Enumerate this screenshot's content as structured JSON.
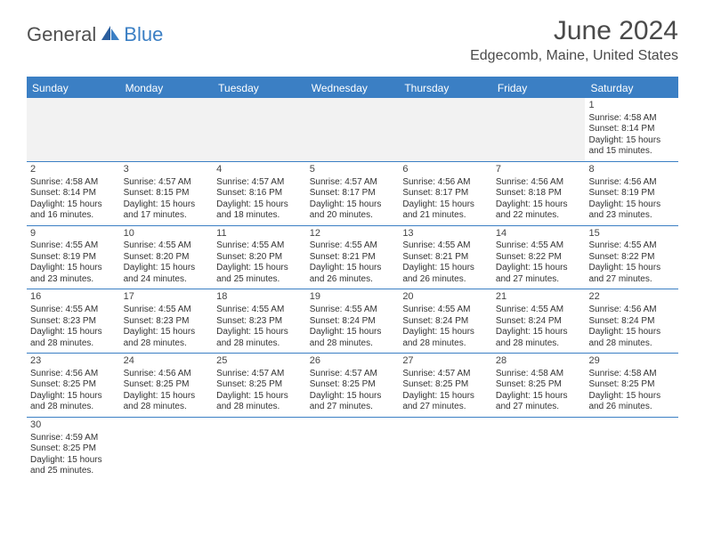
{
  "brand": {
    "part1": "General",
    "part2": "Blue"
  },
  "title": "June 2024",
  "location": "Edgecomb, Maine, United States",
  "colors": {
    "accent": "#3b7fc4",
    "text_dark": "#4a4a4a",
    "cell_text": "#333333",
    "empty_bg": "#f2f2f2",
    "white": "#ffffff"
  },
  "day_headers": [
    "Sunday",
    "Monday",
    "Tuesday",
    "Wednesday",
    "Thursday",
    "Friday",
    "Saturday"
  ],
  "weeks": [
    [
      {
        "empty": true
      },
      {
        "empty": true
      },
      {
        "empty": true
      },
      {
        "empty": true
      },
      {
        "empty": true
      },
      {
        "empty": true
      },
      {
        "num": "1",
        "sunrise": "Sunrise: 4:58 AM",
        "sunset": "Sunset: 8:14 PM",
        "day1": "Daylight: 15 hours",
        "day2": "and 15 minutes."
      }
    ],
    [
      {
        "num": "2",
        "sunrise": "Sunrise: 4:58 AM",
        "sunset": "Sunset: 8:14 PM",
        "day1": "Daylight: 15 hours",
        "day2": "and 16 minutes."
      },
      {
        "num": "3",
        "sunrise": "Sunrise: 4:57 AM",
        "sunset": "Sunset: 8:15 PM",
        "day1": "Daylight: 15 hours",
        "day2": "and 17 minutes."
      },
      {
        "num": "4",
        "sunrise": "Sunrise: 4:57 AM",
        "sunset": "Sunset: 8:16 PM",
        "day1": "Daylight: 15 hours",
        "day2": "and 18 minutes."
      },
      {
        "num": "5",
        "sunrise": "Sunrise: 4:57 AM",
        "sunset": "Sunset: 8:17 PM",
        "day1": "Daylight: 15 hours",
        "day2": "and 20 minutes."
      },
      {
        "num": "6",
        "sunrise": "Sunrise: 4:56 AM",
        "sunset": "Sunset: 8:17 PM",
        "day1": "Daylight: 15 hours",
        "day2": "and 21 minutes."
      },
      {
        "num": "7",
        "sunrise": "Sunrise: 4:56 AM",
        "sunset": "Sunset: 8:18 PM",
        "day1": "Daylight: 15 hours",
        "day2": "and 22 minutes."
      },
      {
        "num": "8",
        "sunrise": "Sunrise: 4:56 AM",
        "sunset": "Sunset: 8:19 PM",
        "day1": "Daylight: 15 hours",
        "day2": "and 23 minutes."
      }
    ],
    [
      {
        "num": "9",
        "sunrise": "Sunrise: 4:55 AM",
        "sunset": "Sunset: 8:19 PM",
        "day1": "Daylight: 15 hours",
        "day2": "and 23 minutes."
      },
      {
        "num": "10",
        "sunrise": "Sunrise: 4:55 AM",
        "sunset": "Sunset: 8:20 PM",
        "day1": "Daylight: 15 hours",
        "day2": "and 24 minutes."
      },
      {
        "num": "11",
        "sunrise": "Sunrise: 4:55 AM",
        "sunset": "Sunset: 8:20 PM",
        "day1": "Daylight: 15 hours",
        "day2": "and 25 minutes."
      },
      {
        "num": "12",
        "sunrise": "Sunrise: 4:55 AM",
        "sunset": "Sunset: 8:21 PM",
        "day1": "Daylight: 15 hours",
        "day2": "and 26 minutes."
      },
      {
        "num": "13",
        "sunrise": "Sunrise: 4:55 AM",
        "sunset": "Sunset: 8:21 PM",
        "day1": "Daylight: 15 hours",
        "day2": "and 26 minutes."
      },
      {
        "num": "14",
        "sunrise": "Sunrise: 4:55 AM",
        "sunset": "Sunset: 8:22 PM",
        "day1": "Daylight: 15 hours",
        "day2": "and 27 minutes."
      },
      {
        "num": "15",
        "sunrise": "Sunrise: 4:55 AM",
        "sunset": "Sunset: 8:22 PM",
        "day1": "Daylight: 15 hours",
        "day2": "and 27 minutes."
      }
    ],
    [
      {
        "num": "16",
        "sunrise": "Sunrise: 4:55 AM",
        "sunset": "Sunset: 8:23 PM",
        "day1": "Daylight: 15 hours",
        "day2": "and 28 minutes."
      },
      {
        "num": "17",
        "sunrise": "Sunrise: 4:55 AM",
        "sunset": "Sunset: 8:23 PM",
        "day1": "Daylight: 15 hours",
        "day2": "and 28 minutes."
      },
      {
        "num": "18",
        "sunrise": "Sunrise: 4:55 AM",
        "sunset": "Sunset: 8:23 PM",
        "day1": "Daylight: 15 hours",
        "day2": "and 28 minutes."
      },
      {
        "num": "19",
        "sunrise": "Sunrise: 4:55 AM",
        "sunset": "Sunset: 8:24 PM",
        "day1": "Daylight: 15 hours",
        "day2": "and 28 minutes."
      },
      {
        "num": "20",
        "sunrise": "Sunrise: 4:55 AM",
        "sunset": "Sunset: 8:24 PM",
        "day1": "Daylight: 15 hours",
        "day2": "and 28 minutes."
      },
      {
        "num": "21",
        "sunrise": "Sunrise: 4:55 AM",
        "sunset": "Sunset: 8:24 PM",
        "day1": "Daylight: 15 hours",
        "day2": "and 28 minutes."
      },
      {
        "num": "22",
        "sunrise": "Sunrise: 4:56 AM",
        "sunset": "Sunset: 8:24 PM",
        "day1": "Daylight: 15 hours",
        "day2": "and 28 minutes."
      }
    ],
    [
      {
        "num": "23",
        "sunrise": "Sunrise: 4:56 AM",
        "sunset": "Sunset: 8:25 PM",
        "day1": "Daylight: 15 hours",
        "day2": "and 28 minutes."
      },
      {
        "num": "24",
        "sunrise": "Sunrise: 4:56 AM",
        "sunset": "Sunset: 8:25 PM",
        "day1": "Daylight: 15 hours",
        "day2": "and 28 minutes."
      },
      {
        "num": "25",
        "sunrise": "Sunrise: 4:57 AM",
        "sunset": "Sunset: 8:25 PM",
        "day1": "Daylight: 15 hours",
        "day2": "and 28 minutes."
      },
      {
        "num": "26",
        "sunrise": "Sunrise: 4:57 AM",
        "sunset": "Sunset: 8:25 PM",
        "day1": "Daylight: 15 hours",
        "day2": "and 27 minutes."
      },
      {
        "num": "27",
        "sunrise": "Sunrise: 4:57 AM",
        "sunset": "Sunset: 8:25 PM",
        "day1": "Daylight: 15 hours",
        "day2": "and 27 minutes."
      },
      {
        "num": "28",
        "sunrise": "Sunrise: 4:58 AM",
        "sunset": "Sunset: 8:25 PM",
        "day1": "Daylight: 15 hours",
        "day2": "and 27 minutes."
      },
      {
        "num": "29",
        "sunrise": "Sunrise: 4:58 AM",
        "sunset": "Sunset: 8:25 PM",
        "day1": "Daylight: 15 hours",
        "day2": "and 26 minutes."
      }
    ],
    [
      {
        "num": "30",
        "sunrise": "Sunrise: 4:59 AM",
        "sunset": "Sunset: 8:25 PM",
        "day1": "Daylight: 15 hours",
        "day2": "and 25 minutes."
      },
      {
        "empty": true
      },
      {
        "empty": true
      },
      {
        "empty": true
      },
      {
        "empty": true
      },
      {
        "empty": true
      },
      {
        "empty": true
      }
    ]
  ]
}
